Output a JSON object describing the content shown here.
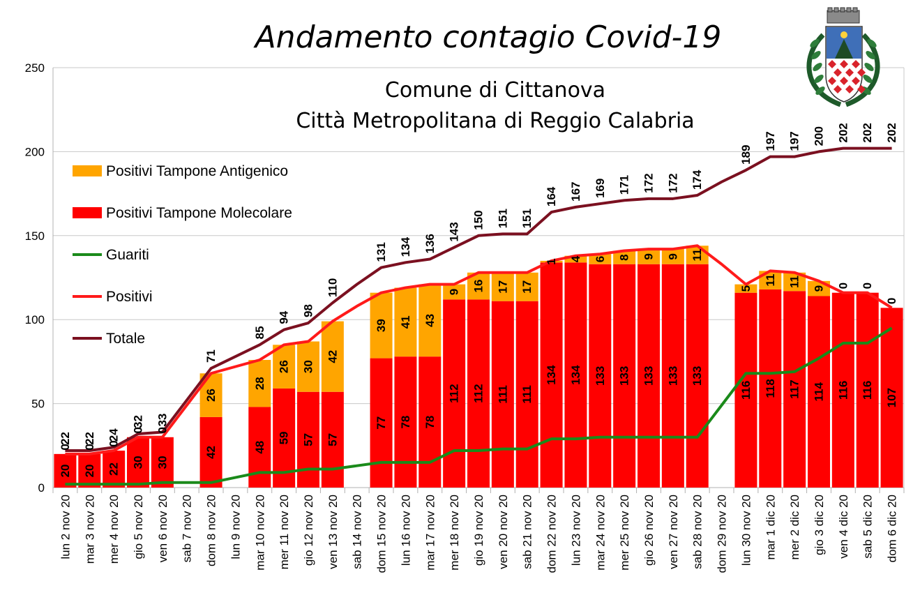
{
  "chart_data": {
    "type": "bar",
    "title": "Andamento contagio Covid-19",
    "subtitle_lines": [
      "Comune di Cittanova",
      "Città Metropolitana di Reggio Calabria"
    ],
    "ylim": [
      0,
      250
    ],
    "yticks": [
      0,
      50,
      100,
      150,
      200,
      250
    ],
    "grid": true,
    "legend_placement": "top-left",
    "categories": [
      "lun 2 nov 20",
      "mar 3 nov 20",
      "mer 4 nov 20",
      "gio 5 nov 20",
      "ven 6 nov 20",
      "sab 7 nov 20",
      "dom 8 nov 20",
      "lun 9 nov 20",
      "mar 10 nov 20",
      "mer 11 nov 20",
      "gio 12 nov 20",
      "ven 13 nov 20",
      "sab 14 nov 20",
      "dom 15 nov 20",
      "lun 16 nov 20",
      "mar 17 nov 20",
      "mer 18 nov 20",
      "gio 19 nov 20",
      "ven 20 nov 20",
      "sab 21 nov 20",
      "dom 22 nov 20",
      "lun 23 nov 20",
      "mar 24 nov 20",
      "mer 25 nov 20",
      "gio 26 nov 20",
      "ven 27 nov 20",
      "sab 28 nov 20",
      "dom 29 nov 20",
      "lun 30 nov 20",
      "mar 1 dic 20",
      "mer 2 dic 20",
      "gio 3 dic 20",
      "ven 4 dic 20",
      "sab 5 dic 20",
      "dom 6 dic 20"
    ],
    "series": [
      {
        "name": "Positivi Tampone Antigenico",
        "kind": "stacked-bar",
        "color": "#ffa500",
        "values": [
          0,
          0,
          0,
          0,
          0,
          null,
          26,
          null,
          28,
          26,
          30,
          42,
          null,
          39,
          41,
          43,
          9,
          16,
          17,
          17,
          1,
          4,
          6,
          8,
          9,
          9,
          11,
          null,
          5,
          11,
          11,
          9,
          0,
          0,
          0
        ]
      },
      {
        "name": "Positivi Tampone Molecolare",
        "kind": "stacked-bar",
        "color": "#ff0000",
        "values": [
          20,
          20,
          22,
          30,
          30,
          null,
          42,
          null,
          48,
          59,
          57,
          57,
          null,
          77,
          78,
          78,
          112,
          112,
          111,
          111,
          134,
          134,
          133,
          133,
          133,
          133,
          133,
          null,
          116,
          118,
          117,
          114,
          116,
          116,
          107
        ]
      },
      {
        "name": "Guariti",
        "kind": "line",
        "color": "#1a8a1a",
        "values": [
          2,
          2,
          2,
          2,
          3,
          3,
          3,
          6,
          9,
          9,
          11,
          11,
          13,
          15,
          15,
          15,
          22,
          22,
          23,
          23,
          29,
          29,
          30,
          30,
          30,
          30,
          30,
          49,
          68,
          68,
          69,
          77,
          86,
          86,
          95
        ]
      },
      {
        "name": "Positivi",
        "kind": "line",
        "color": "#ff1a1a",
        "values": [
          20,
          20,
          22,
          30,
          30,
          49,
          68,
          72,
          76,
          85,
          87,
          99,
          108,
          116,
          119,
          121,
          121,
          128,
          128,
          128,
          135,
          138,
          139,
          141,
          142,
          142,
          144,
          133,
          121,
          129,
          128,
          123,
          116,
          116,
          107
        ]
      },
      {
        "name": "Totale",
        "kind": "line",
        "color": "#7b1020",
        "values": [
          22,
          22,
          24,
          32,
          33,
          52,
          71,
          78,
          85,
          94,
          98,
          110,
          121,
          131,
          134,
          136,
          143,
          150,
          151,
          151,
          164,
          167,
          169,
          171,
          172,
          172,
          174,
          182,
          189,
          197,
          197,
          200,
          202,
          202,
          202
        ],
        "labeled": [
          true,
          true,
          true,
          true,
          true,
          false,
          true,
          false,
          true,
          true,
          true,
          true,
          false,
          true,
          true,
          true,
          true,
          true,
          true,
          true,
          true,
          true,
          true,
          true,
          true,
          true,
          true,
          false,
          true,
          true,
          true,
          true,
          true,
          true,
          true
        ]
      }
    ]
  }
}
